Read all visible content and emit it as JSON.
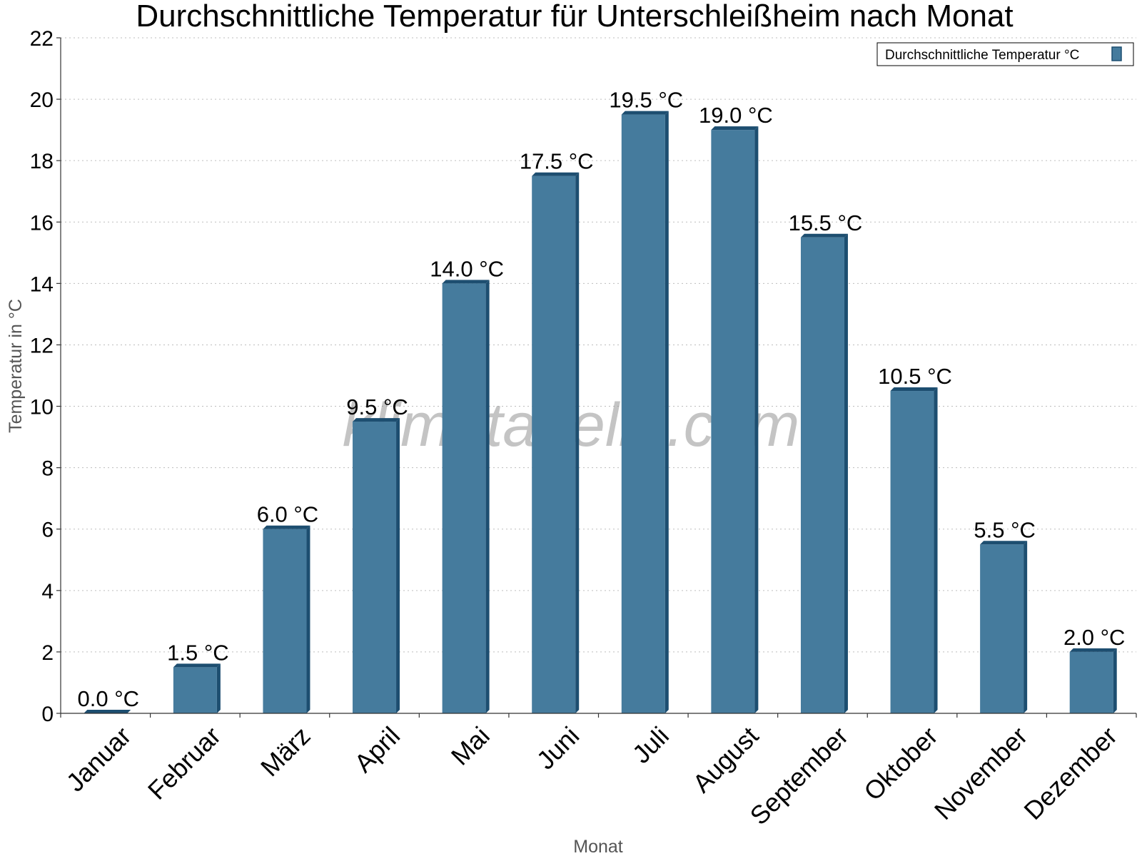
{
  "chart_data": {
    "type": "bar",
    "title": "Durchschnittliche Temperatur für Unterschleißheim nach Monat",
    "xlabel": "Monat",
    "ylabel": "Temperatur in °C",
    "ylim": [
      0,
      22
    ],
    "yticks": [
      0,
      2,
      4,
      6,
      8,
      10,
      12,
      14,
      16,
      18,
      20,
      22
    ],
    "grid": true,
    "legend_position": "top-right",
    "categories": [
      "Januar",
      "Februar",
      "März",
      "April",
      "Mai",
      "Juni",
      "Juli",
      "August",
      "September",
      "Oktober",
      "November",
      "Dezember"
    ],
    "series": [
      {
        "name": "Durchschnittliche Temperatur °C",
        "values": [
          0.0,
          1.5,
          6.0,
          9.5,
          14.0,
          17.5,
          19.5,
          19.0,
          15.5,
          10.5,
          5.5,
          2.0
        ],
        "labels": [
          "0.0 °C",
          "1.5 °C",
          "6.0 °C",
          "9.5 °C",
          "14.0 °C",
          "17.5 °C",
          "19.5 °C",
          "19.0 °C",
          "15.5 °C",
          "10.5 °C",
          "5.5 °C",
          "2.0 °C"
        ],
        "color": "#457b9d",
        "edge_color": "#1d4e70"
      }
    ],
    "watermark": "klimatabelle.com"
  }
}
